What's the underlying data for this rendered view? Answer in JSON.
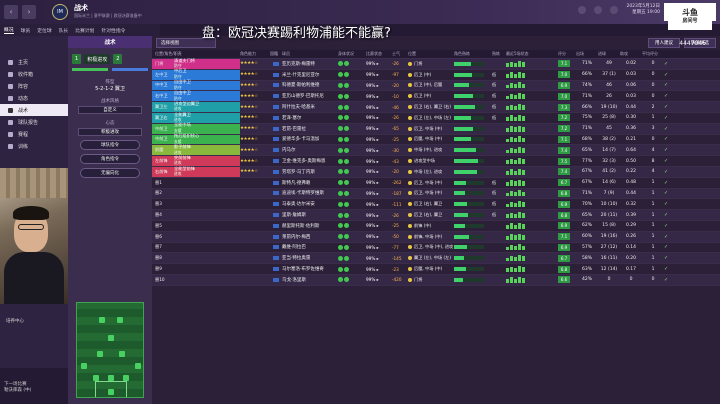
{
  "topbar": {
    "screen_title": "战术",
    "screen_subtitle": "国际米兰 | 意甲联赛 | 欧冠决赛准备中",
    "date_line1": "2023年5月12日",
    "date_line2": "星期五 19:00",
    "continue_label": "继续",
    "club_logo_text": "IM"
  },
  "tabs": [
    "概况",
    "球员",
    "定位球",
    "队长",
    "比赛计划",
    "针对性指令"
  ],
  "sidebar": {
    "items": [
      {
        "label": "主页",
        "icon": "home-icon"
      },
      {
        "label": "收件箱",
        "icon": "inbox-icon"
      },
      {
        "label": "阵容",
        "icon": "squad-icon"
      },
      {
        "label": "动态",
        "icon": "news-icon"
      },
      {
        "label": "战术",
        "icon": "tactics-icon",
        "active": true
      },
      {
        "label": "球队报告",
        "icon": "report-icon"
      },
      {
        "label": "赛程",
        "icon": "calendar-icon"
      },
      {
        "label": "训练",
        "icon": "training-icon"
      }
    ],
    "training_label": "培养中心",
    "status_line1": "下一场比赛",
    "status_line2": "勒沃库森 (中)"
  },
  "overlay_title": "盘：欧冠决赛踢利物浦能不能赢?",
  "watermark": {
    "line1": "斗鱼",
    "line2": "房间号",
    "room": "4447046"
  },
  "tactic_panel": {
    "header": "战术",
    "chip1": "1",
    "chip2": "积极进攻",
    "chip3": "2",
    "formation_label": "阵型",
    "formation_value": "5-2-1-2 翼卫",
    "style_label": "战术风格",
    "style_value": "自定义",
    "mentality_label": "心态",
    "mentality_value": "积极进攻",
    "btn1": "球队指令",
    "btn2": "角色指令",
    "btn3": "无偏向化"
  },
  "toolbar": {
    "view_label": "选择视图",
    "btn_recommend": "用人建议",
    "btn_quickpick": "快速挑选"
  },
  "columns": [
    "位置/角色/职责",
    "角色能力",
    "国籍",
    "球员",
    "身体状况",
    "比赛状态",
    "士气",
    "位置",
    "角色熟练",
    "熟练",
    "最近5场状态",
    "评分",
    "出场",
    "进球",
    "助攻",
    "平均评分"
  ],
  "players": [
    {
      "pos": "门将",
      "role": "清道夫门将",
      "duty": "防守",
      "color": "#d02f8a",
      "stars": "★★★★☆",
      "name": "亚历克斯·梅雷特",
      "morale": "99% ▸",
      "ctrl": "-26",
      "posdesc": "门将",
      "ability": 0.55,
      "lvl": "",
      "rating": "7.1",
      "apps": "71%",
      "g": "49",
      "a": "0.02",
      "avg": "0"
    },
    {
      "pos": "左中卫",
      "role": "中后卫",
      "duty": "防守",
      "color": "#2b7ad8",
      "stars": "★★★★☆",
      "name": "米兰·什克里尼亚尔",
      "morale": "99% ▸",
      "ctrl": "-97",
      "posdesc": "后卫 (中)",
      "ability": 0.6,
      "lvl": "低",
      "rating": "7.0",
      "apps": "66%",
      "g": "37 (1)",
      "a": "0.03",
      "avg": "0"
    },
    {
      "pos": "中中卫",
      "role": "自由中卫",
      "duty": "防守",
      "color": "#2b7ad8",
      "stars": "★★★★☆",
      "name": "科德夏·斯帕利维德",
      "morale": "99% ▸",
      "ctrl": "-20",
      "posdesc": "后卫 (中), 后腰",
      "ability": 0.5,
      "lvl": "低",
      "rating": "6.9",
      "apps": "74%",
      "g": "46",
      "a": "0.06",
      "avg": "0"
    },
    {
      "pos": "右中卫",
      "role": "自由中卫",
      "duty": "防守",
      "color": "#2b7ad8",
      "stars": "★★★★☆",
      "name": "亚历山德罗·巴斯托尼",
      "morale": "99% ▸",
      "ctrl": "-10",
      "posdesc": "后卫 (中)",
      "ability": 0.62,
      "lvl": "低",
      "rating": "7.0",
      "apps": "71%",
      "g": "26",
      "a": "0.03",
      "avg": "0"
    },
    {
      "pos": "翼卫左",
      "role": "进攻型边翼卫",
      "duty": "进攻",
      "color": "#1fa0a8",
      "stars": "★★★★☆",
      "name": "阿什拉夫·哈基米",
      "morale": "99% ▸",
      "ctrl": "-46",
      "posdesc": "后卫 (右), 翼卫 (右)",
      "ability": 0.7,
      "lvl": "低",
      "rating": "7.3",
      "apps": "66%",
      "g": "19 (10)",
      "a": "0.44",
      "avg": "2"
    },
    {
      "pos": "翼卫右",
      "role": "全能翼卫",
      "duty": "进攻",
      "color": "#1fa0a8",
      "stars": "★★★★☆",
      "name": "若泽·塞尔",
      "morale": "99% ▸",
      "ctrl": "-26",
      "posdesc": "后卫 (左), 中场 (左)",
      "ability": 0.58,
      "lvl": "低",
      "rating": "7.2",
      "apps": "75%",
      "g": "25 (8)",
      "a": "0.30",
      "avg": "1"
    },
    {
      "pos": "中前卫",
      "role": "全能中场",
      "duty": "支援",
      "color": "#3bb24e",
      "stars": "★★★★☆",
      "name": "若昂·巴雷拉",
      "morale": "99% ▸",
      "ctrl": "-65",
      "posdesc": "后卫, 中场 (中)",
      "ability": 0.64,
      "lvl": "",
      "rating": "7.2",
      "apps": "71%",
      "g": "45",
      "a": "0.36",
      "avg": "3"
    },
    {
      "pos": "中前卫",
      "role": "拖后组织核心",
      "duty": "支援",
      "color": "#3bb24e",
      "stars": "★★★★☆",
      "name": "爱德华多·卡马温加",
      "morale": "99% ▸",
      "ctrl": "-25",
      "posdesc": "后腰, 中场 (中)",
      "ability": 0.55,
      "lvl": "",
      "rating": "7.1",
      "apps": "68%",
      "g": "38 (2)",
      "a": "0.21",
      "avg": "0"
    },
    {
      "pos": "前腰",
      "role": "影子前锋",
      "duty": "进攻",
      "color": "#8ab83c",
      "stars": "★★★★☆",
      "name": "内马尔",
      "morale": "99% ▸",
      "ctrl": "-30",
      "posdesc": "中场 (中), 进攻",
      "ability": 0.72,
      "lvl": "",
      "rating": "7.4",
      "apps": "65%",
      "g": "14 (7)",
      "a": "0.64",
      "avg": "4"
    },
    {
      "pos": "左前锋",
      "role": "突前前锋",
      "duty": "进攻",
      "color": "#d03a5a",
      "stars": "★★★★☆",
      "name": "卫金·维克多·奥斯梅恩",
      "morale": "99% ▸",
      "ctrl": "-43",
      "posdesc": "进攻型中场",
      "ability": 0.8,
      "lvl": "",
      "rating": "7.5",
      "apps": "77%",
      "g": "32 (3)",
      "a": "0.50",
      "avg": "8"
    },
    {
      "pos": "右前锋",
      "role": "全能型前锋",
      "duty": "进攻",
      "color": "#d03a5a",
      "stars": "★★★★☆",
      "name": "劳塔罗·马丁内斯",
      "morale": "99% ▸",
      "ctrl": "-20",
      "posdesc": "中场 (左), 进攻",
      "ability": 0.75,
      "lvl": "",
      "rating": "7.4",
      "apps": "67%",
      "g": "41 (2)",
      "a": "0.22",
      "avg": "4"
    },
    {
      "pos": "替1",
      "role": "",
      "duty": "",
      "color": "",
      "stars": "",
      "name": "斯特凡·德弗赖",
      "morale": "99% ▸",
      "ctrl": "-262",
      "posdesc": "后卫, 中场 (中)",
      "ability": 0.4,
      "lvl": "低",
      "rating": "6.7",
      "apps": "67%",
      "g": "14 (6)",
      "a": "0.48",
      "avg": "1"
    },
    {
      "pos": "替2",
      "role": "",
      "duty": "",
      "color": "",
      "stars": "",
      "name": "迪迪埃·卡斯特罗维斯",
      "morale": "99% ▸",
      "ctrl": "-187",
      "posdesc": "后卫, 中场 (中)",
      "ability": 0.38,
      "lvl": "低",
      "rating": "6.8",
      "apps": "71%",
      "g": "7 (9)",
      "a": "0.44",
      "avg": "1"
    },
    {
      "pos": "替3",
      "role": "",
      "duty": "",
      "color": "",
      "stars": "",
      "name": "马泰奥·达尔米安",
      "morale": "99% ▸",
      "ctrl": "-111",
      "posdesc": "后卫 (右), 翼卫",
      "ability": 0.42,
      "lvl": "低",
      "rating": "6.9",
      "apps": "70%",
      "g": "10 (10)",
      "a": "0.32",
      "avg": "1"
    },
    {
      "pos": "替4",
      "role": "",
      "duty": "",
      "color": "",
      "stars": "",
      "name": "里斯·詹姆斯",
      "morale": "99% ▸",
      "ctrl": "-26",
      "posdesc": "后卫 (右), 翼卫",
      "ability": 0.45,
      "lvl": "低",
      "rating": "6.8",
      "apps": "65%",
      "g": "20 (11)",
      "a": "0.39",
      "avg": "1"
    },
    {
      "pos": "替5",
      "role": "",
      "duty": "",
      "color": "",
      "stars": "",
      "name": "赫里斯托斯·佐利斯",
      "morale": "99% ▸",
      "ctrl": "-25",
      "posdesc": "前锋 (中)",
      "ability": 0.36,
      "lvl": "",
      "rating": "6.9",
      "apps": "62%",
      "g": "15 (8)",
      "a": "0.29",
      "avg": "1"
    },
    {
      "pos": "替6",
      "role": "",
      "duty": "",
      "color": "",
      "stars": "",
      "name": "莱昂内尔·梅西",
      "morale": "99% ▸",
      "ctrl": "-50",
      "posdesc": "前锋, 中场 (中)",
      "ability": 0.5,
      "lvl": "",
      "rating": "7.1",
      "apps": "60%",
      "g": "19 (16)",
      "a": "0.26",
      "avg": "1"
    },
    {
      "pos": "替7",
      "role": "",
      "duty": "",
      "color": "",
      "stars": "",
      "name": "戴维·阿拉巴",
      "morale": "99% ▸",
      "ctrl": "-77",
      "posdesc": "后卫, 中场 (中), 进攻",
      "ability": 0.44,
      "lvl": "",
      "rating": "6.9",
      "apps": "57%",
      "g": "27 (12)",
      "a": "0.14",
      "avg": "1"
    },
    {
      "pos": "替8",
      "role": "",
      "duty": "",
      "color": "",
      "stars": "",
      "name": "亚当·特拉奥雷",
      "morale": "99% ▸",
      "ctrl": "-145",
      "posdesc": "翼卫 (左), 中场 (左)",
      "ability": 0.34,
      "lvl": "",
      "rating": "6.7",
      "apps": "58%",
      "g": "16 (11)",
      "a": "0.20",
      "avg": "1"
    },
    {
      "pos": "替9",
      "role": "",
      "duty": "",
      "color": "",
      "stars": "",
      "name": "马尔塞洛·布罗佐维奇",
      "morale": "99% ▸",
      "ctrl": "-23",
      "posdesc": "后腰, 中场 (中)",
      "ability": 0.4,
      "lvl": "",
      "rating": "6.8",
      "apps": "63%",
      "g": "12 (14)",
      "a": "0.17",
      "avg": "1"
    },
    {
      "pos": "替10",
      "role": "",
      "duty": "",
      "color": "",
      "stars": "",
      "name": "乌戈·洛里斯",
      "morale": "99% ▸",
      "ctrl": "-420",
      "posdesc": "门将",
      "ability": 0.3,
      "lvl": "",
      "rating": "6.6",
      "apps": "42%",
      "g": "0",
      "a": "0",
      "avg": "0"
    }
  ]
}
